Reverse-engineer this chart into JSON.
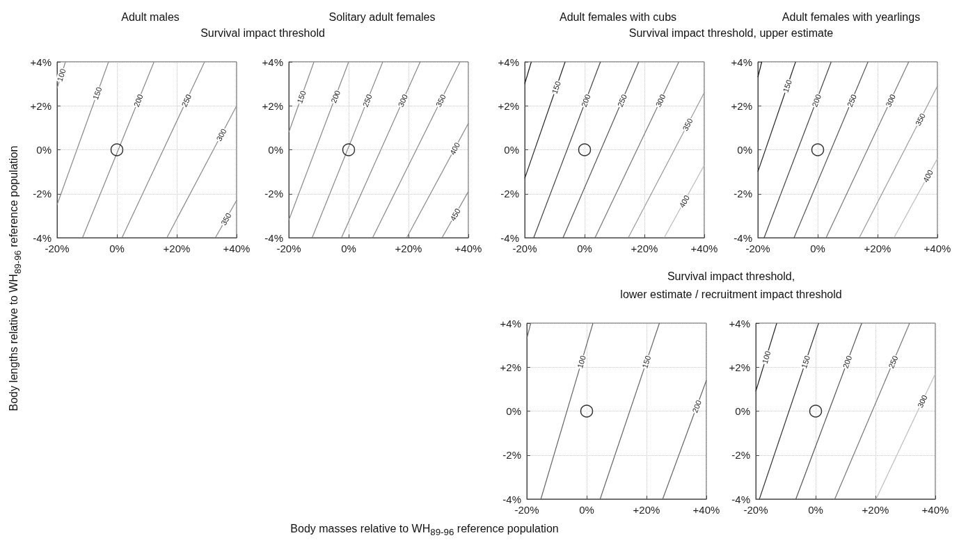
{
  "chart_data": [
    {
      "type": "line",
      "title": "Adult males",
      "subtitle": "Survival impact threshold",
      "ylabel": "Body lengths relative to WH$_{89-96}$ reference population",
      "xlim": [
        -20,
        40
      ],
      "ylim": [
        -4,
        4
      ],
      "xticks": [
        {
          "value": -20,
          "label": "-20%"
        },
        {
          "value": 0,
          "label": "0%"
        },
        {
          "value": 20,
          "label": "+20%"
        },
        {
          "value": 40,
          "label": "+40%"
        }
      ],
      "yticks": [
        {
          "value": -4,
          "label": "-4%"
        },
        {
          "value": -2,
          "label": "-2%"
        },
        {
          "value": 0,
          "label": "0%"
        },
        {
          "value": 2,
          "label": "+2%"
        },
        {
          "value": 4,
          "label": "+4%"
        }
      ],
      "grid": true,
      "line_style": "solid",
      "series": [
        {
          "name": "100",
          "color": "#888888",
          "x": [
            -20,
            -17.2
          ],
          "values": [
            2.8,
            4
          ]
        },
        {
          "name": "150",
          "color": "#888888",
          "x": [
            -20,
            -2.8
          ],
          "values": [
            -2.5,
            4
          ]
        },
        {
          "name": "200",
          "color": "#888888",
          "x": [
            -11.5,
            12.4
          ],
          "values": [
            -4,
            4
          ]
        },
        {
          "name": "250",
          "color": "#888888",
          "x": [
            1.7,
            29.3
          ],
          "values": [
            -4,
            4
          ]
        },
        {
          "name": "300",
          "color": "#888888",
          "x": [
            16.7,
            40
          ],
          "values": [
            -4,
            2.0
          ]
        },
        {
          "name": "350",
          "color": "#888888",
          "x": [
            32.9,
            40
          ],
          "values": [
            -4,
            -2.3
          ]
        },
        {
          "type": "scatter",
          "marker": "circle",
          "color": "#000000",
          "x": [
            0
          ],
          "values": [
            0
          ]
        }
      ]
    },
    {
      "type": "line",
      "title": "Solitary adult females",
      "xlim": [
        -20,
        40
      ],
      "ylim": [
        -4,
        4
      ],
      "xticks": [
        {
          "value": -20,
          "label": "-20%"
        },
        {
          "value": 0,
          "label": "0%"
        },
        {
          "value": 20,
          "label": "+20%"
        },
        {
          "value": 40,
          "label": "+40%"
        }
      ],
      "yticks": [
        {
          "value": -4,
          "label": "-4%"
        },
        {
          "value": -2,
          "label": "-2%"
        },
        {
          "value": 0,
          "label": "0%"
        },
        {
          "value": 2,
          "label": "+2%"
        },
        {
          "value": 4,
          "label": "+4%"
        }
      ],
      "grid": true,
      "line_style": "solid",
      "series": [
        {
          "name": "150",
          "color": "#888888",
          "x": [
            -20,
            -11.6
          ],
          "values": [
            0.8,
            4
          ]
        },
        {
          "name": "200",
          "color": "#888888",
          "x": [
            -20,
            0
          ],
          "values": [
            -3.2,
            4
          ]
        },
        {
          "name": "250",
          "color": "#888888",
          "x": [
            -12.2,
            11.4
          ],
          "values": [
            -4,
            4
          ]
        },
        {
          "name": "300",
          "color": "#888888",
          "x": [
            -2.4,
            23.9
          ],
          "values": [
            -4,
            4
          ]
        },
        {
          "name": "350",
          "color": "#888888",
          "x": [
            8.0,
            37.2
          ],
          "values": [
            -4,
            4
          ]
        },
        {
          "name": "400",
          "color": "#888888",
          "x": [
            19.4,
            40
          ],
          "values": [
            -4,
            1.2
          ]
        },
        {
          "name": "450",
          "color": "#888888",
          "x": [
            31.2,
            40
          ],
          "values": [
            -4,
            -1.9
          ]
        },
        {
          "type": "scatter",
          "marker": "circle",
          "color": "#000000",
          "x": [
            0
          ],
          "values": [
            0
          ]
        }
      ]
    },
    {
      "type": "line",
      "title": "Adult females with cubs",
      "subtitle": "Survival impact threshold, upper estimate",
      "xlim": [
        -20,
        40
      ],
      "ylim": [
        -4,
        4
      ],
      "xticks": [
        {
          "value": -20,
          "label": "-20%"
        },
        {
          "value": 0,
          "label": "0%"
        },
        {
          "value": 20,
          "label": "+20%"
        },
        {
          "value": 40,
          "label": "+40%"
        }
      ],
      "yticks": [
        {
          "value": -4,
          "label": "-4%"
        },
        {
          "value": -2,
          "label": "-2%"
        },
        {
          "value": 0,
          "label": "0%"
        },
        {
          "value": 2,
          "label": "+2%"
        },
        {
          "value": 4,
          "label": "+4%"
        }
      ],
      "grid": true,
      "line_style": "solid",
      "series": [
        {
          "color": "#111111",
          "x": [
            -20,
            -17.8
          ],
          "values": [
            3.0,
            4
          ]
        },
        {
          "name": "150",
          "color": "#222222",
          "x": [
            -20,
            -6.5
          ],
          "values": [
            -1.3,
            4
          ]
        },
        {
          "name": "200",
          "color": "#444444",
          "x": [
            -17.0,
            5.3
          ],
          "values": [
            -4,
            4
          ]
        },
        {
          "name": "250",
          "color": "#555555",
          "x": [
            -7.2,
            18.1
          ],
          "values": [
            -4,
            4
          ]
        },
        {
          "name": "300",
          "color": "#777777",
          "x": [
            3.5,
            31.5
          ],
          "values": [
            -4,
            4
          ]
        },
        {
          "name": "350",
          "color": "#999999",
          "x": [
            14.6,
            40
          ],
          "values": [
            -4,
            2.6
          ]
        },
        {
          "name": "400",
          "color": "#bbbbbb",
          "x": [
            26.6,
            40
          ],
          "values": [
            -4,
            -0.7
          ]
        },
        {
          "type": "scatter",
          "marker": "circle",
          "color": "#000000",
          "x": [
            0
          ],
          "values": [
            0
          ]
        }
      ]
    },
    {
      "type": "line",
      "title": "Adult females with yearlings",
      "xlim": [
        -20,
        40
      ],
      "ylim": [
        -4,
        4
      ],
      "xticks": [
        {
          "value": -20,
          "label": "-20%"
        },
        {
          "value": 0,
          "label": "0%"
        },
        {
          "value": 20,
          "label": "+20%"
        },
        {
          "value": 40,
          "label": "+40%"
        }
      ],
      "yticks": [
        {
          "value": -4,
          "label": "-4%"
        },
        {
          "value": -2,
          "label": "-2%"
        },
        {
          "value": 0,
          "label": "0%"
        },
        {
          "value": 2,
          "label": "+2%"
        },
        {
          "value": 4,
          "label": "+4%"
        }
      ],
      "grid": true,
      "line_style": "solid",
      "series": [
        {
          "color": "#111111",
          "x": [
            -20,
            -18.7
          ],
          "values": [
            3.3,
            4
          ]
        },
        {
          "name": "150",
          "color": "#222222",
          "x": [
            -20,
            -7.4
          ],
          "values": [
            -1.0,
            4
          ]
        },
        {
          "name": "200",
          "color": "#444444",
          "x": [
            -17.9,
            4.5
          ],
          "values": [
            -4,
            4
          ]
        },
        {
          "name": "250",
          "color": "#555555",
          "x": [
            -7.9,
            16.8
          ],
          "values": [
            -4,
            4
          ]
        },
        {
          "name": "300",
          "color": "#777777",
          "x": [
            2.8,
            30.4
          ],
          "values": [
            -4,
            4
          ]
        },
        {
          "name": "350",
          "color": "#999999",
          "x": [
            13.9,
            40
          ],
          "values": [
            -4,
            2.9
          ]
        },
        {
          "name": "400",
          "color": "#bbbbbb",
          "x": [
            25.5,
            40
          ],
          "values": [
            -4,
            -0.4
          ]
        },
        {
          "type": "scatter",
          "marker": "circle",
          "color": "#000000",
          "x": [
            0
          ],
          "values": [
            0
          ]
        }
      ]
    },
    {
      "type": "line",
      "subtitle": "Survival impact threshold,\nlower estimate / recruitment impact threshold",
      "xlabel": "Body masses relative to WH$_{89-96}$ reference population",
      "xlim": [
        -20,
        40
      ],
      "ylim": [
        -4,
        4
      ],
      "xticks": [
        {
          "value": -20,
          "label": "-20%"
        },
        {
          "value": 0,
          "label": "0%"
        },
        {
          "value": 20,
          "label": "+20%"
        },
        {
          "value": 40,
          "label": "+40%"
        }
      ],
      "yticks": [
        {
          "value": -4,
          "label": "-4%"
        },
        {
          "value": -2,
          "label": "-2%"
        },
        {
          "value": 0,
          "label": "0%"
        },
        {
          "value": 2,
          "label": "+2%"
        },
        {
          "value": 4,
          "label": "+4%"
        }
      ],
      "grid": true,
      "line_style": "solid",
      "series": [
        {
          "color": "#666666",
          "x": [
            -20,
            -18.7
          ],
          "values": [
            3.3,
            4
          ]
        },
        {
          "name": "100",
          "color": "#666666",
          "x": [
            -15.3,
            2.1
          ],
          "values": [
            -4,
            4
          ]
        },
        {
          "name": "150",
          "color": "#666666",
          "x": [
            4.5,
            24.3
          ],
          "values": [
            -4,
            4
          ]
        },
        {
          "name": "200",
          "color": "#666666",
          "x": [
            25.4,
            40
          ],
          "values": [
            -4,
            1.4
          ]
        },
        {
          "type": "scatter",
          "marker": "circle",
          "color": "#000000",
          "x": [
            0
          ],
          "values": [
            0
          ]
        }
      ]
    },
    {
      "type": "line",
      "xlim": [
        -20,
        40
      ],
      "ylim": [
        -4,
        4
      ],
      "xticks": [
        {
          "value": -20,
          "label": "-20%"
        },
        {
          "value": 0,
          "label": "0%"
        },
        {
          "value": 20,
          "label": "+20%"
        },
        {
          "value": 40,
          "label": "+40%"
        }
      ],
      "yticks": [
        {
          "value": -4,
          "label": "-4%"
        },
        {
          "value": -2,
          "label": "-2%"
        },
        {
          "value": 0,
          "label": "0%"
        },
        {
          "value": 2,
          "label": "+2%"
        },
        {
          "value": 4,
          "label": "+4%"
        }
      ],
      "grid": true,
      "line_style": "solid",
      "series": [
        {
          "name": "100",
          "color": "#222222",
          "x": [
            -20,
            -13.0
          ],
          "values": [
            0.9,
            4
          ]
        },
        {
          "name": "150",
          "color": "#333333",
          "x": [
            -18.8,
            1.0
          ],
          "values": [
            -4,
            4
          ]
        },
        {
          "name": "200",
          "color": "#555555",
          "x": [
            -6.6,
            15.4
          ],
          "values": [
            -4,
            4
          ]
        },
        {
          "name": "250",
          "color": "#777777",
          "x": [
            6.4,
            31.4
          ],
          "values": [
            -4,
            4
          ]
        },
        {
          "name": "300",
          "color": "#bbbbbb",
          "x": [
            20.2,
            40
          ],
          "values": [
            -4,
            1.7
          ]
        },
        {
          "type": "scatter",
          "marker": "circle",
          "color": "#000000",
          "x": [
            0
          ],
          "values": [
            0
          ]
        }
      ]
    }
  ]
}
